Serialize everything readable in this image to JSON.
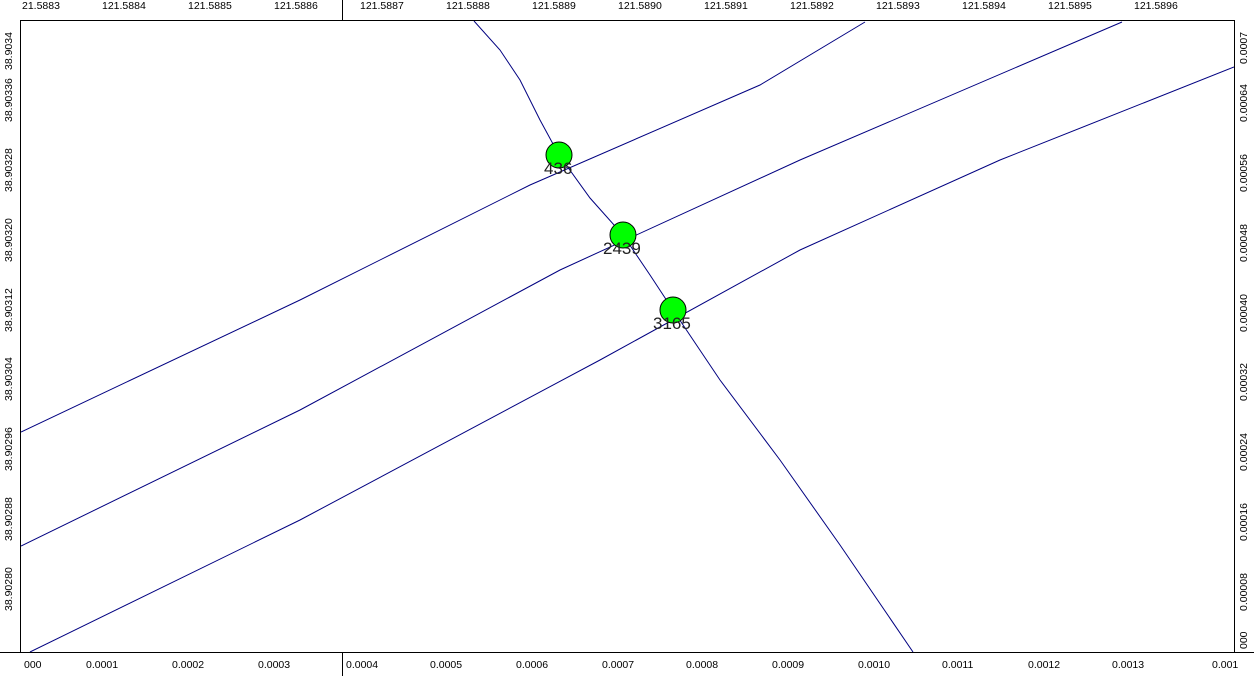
{
  "rulers": {
    "top": [
      "21.5883",
      "121.5884",
      "121.5885",
      "121.5886",
      "121.5887",
      "121.5888",
      "121.5889",
      "121.5890",
      "121.5891",
      "121.5892",
      "121.5893",
      "121.5894",
      "121.5895",
      "121.5896"
    ],
    "bottom": [
      "000",
      "0.0001",
      "0.0002",
      "0.0003",
      "0.0004",
      "0.0005",
      "0.0006",
      "0.0007",
      "0.0008",
      "0.0009",
      "0.0010",
      "0.0011",
      "0.0012",
      "0.0013",
      "0.001"
    ],
    "left": [
      "38.9034",
      "38.90336",
      "38.90328",
      "38.90320",
      "38.90312",
      "38.90304",
      "38.90296",
      "38.90288",
      "38.90280"
    ],
    "right": [
      "0.0007",
      "0.00064",
      "0.00056",
      "0.00048",
      "0.00040",
      "0.00032",
      "0.00024",
      "0.00016",
      "0.00008",
      "000"
    ]
  },
  "map": {
    "line_color": "#000080",
    "point_color": "#00ff00",
    "points": [
      {
        "label": "436"
      },
      {
        "label": "2439"
      },
      {
        "label": "3165"
      }
    ]
  }
}
